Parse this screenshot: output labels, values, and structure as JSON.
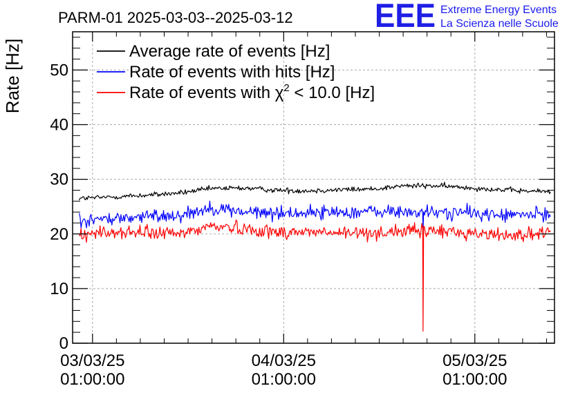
{
  "chart_data": {
    "type": "line",
    "title": "PARM-01 2025-03-03--2025-03-12",
    "ylabel": "Rate [Hz]",
    "xlabel": "",
    "ylim": [
      0,
      57
    ],
    "yticks": [
      0,
      10,
      20,
      30,
      40,
      50
    ],
    "xlim": [
      "2025-03-02 22:30",
      "2025-03-05 11:00"
    ],
    "xticks": [
      {
        "value": "2025-03-03 01:00",
        "date": "03/03/25",
        "time": "01:00:00"
      },
      {
        "value": "2025-03-04 01:00",
        "date": "04/03/25",
        "time": "01:00:00"
      },
      {
        "value": "2025-03-05 01:00",
        "date": "05/03/25",
        "time": "01:00:00"
      }
    ],
    "grid": true,
    "legend_position": "top-left",
    "legend_sup": "2",
    "series": [
      {
        "name": "Average rate of events [Hz]",
        "legend_prefix": "Average rate of events [Hz]",
        "legend_suffix": "",
        "color": "#000000",
        "noise": 0.35,
        "start": "2025-03-02 23:20",
        "end": "2025-03-05 10:30",
        "x": [
          "2025-03-02 23:20",
          "2025-03-03 04:00",
          "2025-03-03 08:00",
          "2025-03-03 12:00",
          "2025-03-03 16:00",
          "2025-03-03 20:00",
          "2025-03-04 00:00",
          "2025-03-04 04:00",
          "2025-03-04 08:00",
          "2025-03-04 12:00",
          "2025-03-04 16:00",
          "2025-03-04 20:00",
          "2025-03-05 00:00",
          "2025-03-05 04:00",
          "2025-03-05 08:00",
          "2025-03-05 10:30"
        ],
        "y": [
          26.5,
          26.8,
          27.1,
          27.5,
          28.3,
          28.4,
          28.0,
          27.9,
          28.1,
          28.2,
          28.8,
          28.8,
          28.5,
          28.1,
          27.8,
          27.8
        ]
      },
      {
        "name": "Rate of events with hits [Hz]",
        "legend_prefix": "Rate of events with hits [Hz]",
        "legend_suffix": "",
        "color": "#0000ff",
        "noise": 0.9,
        "start": "2025-03-02 23:20",
        "end": "2025-03-05 10:30",
        "x": [
          "2025-03-02 23:20",
          "2025-03-03 04:00",
          "2025-03-03 08:00",
          "2025-03-03 12:00",
          "2025-03-03 16:00",
          "2025-03-03 20:00",
          "2025-03-04 00:00",
          "2025-03-04 04:00",
          "2025-03-04 08:00",
          "2025-03-04 12:00",
          "2025-03-04 16:00",
          "2025-03-04 20:00",
          "2025-03-05 00:00",
          "2025-03-05 04:00",
          "2025-03-05 08:00",
          "2025-03-05 10:30"
        ],
        "y": [
          22.5,
          22.8,
          23.2,
          23.5,
          24.8,
          24.0,
          23.8,
          23.9,
          24.0,
          24.1,
          24.0,
          23.9,
          23.9,
          23.4,
          23.5,
          23.6
        ]
      },
      {
        "name": "Rate of events with χ2 < 10.0 [Hz]",
        "legend_prefix": "Rate of events with χ",
        "legend_suffix": " < 10.0 [Hz]",
        "color": "#ff0000",
        "noise": 0.9,
        "start": "2025-03-02 23:20",
        "end": "2025-03-05 10:30",
        "x": [
          "2025-03-02 23:20",
          "2025-03-03 04:00",
          "2025-03-03 08:00",
          "2025-03-03 12:00",
          "2025-03-03 16:00",
          "2025-03-03 20:00",
          "2025-03-04 00:00",
          "2025-03-04 04:00",
          "2025-03-04 08:00",
          "2025-03-04 12:00",
          "2025-03-04 16:00",
          "2025-03-04 20:00",
          "2025-03-05 00:00",
          "2025-03-05 04:00",
          "2025-03-05 08:00",
          "2025-03-05 10:30"
        ],
        "y": [
          20.0,
          20.3,
          20.2,
          20.0,
          21.5,
          21.0,
          20.3,
          20.4,
          20.1,
          20.2,
          20.5,
          20.6,
          20.2,
          19.8,
          19.9,
          20.0
        ]
      }
    ],
    "spike": {
      "x": "2025-03-04 18:30",
      "values": [
        {
          "series": 1,
          "y": 20.5
        },
        {
          "series": 2,
          "y": 2.2
        }
      ]
    }
  },
  "logo": {
    "text": "EEE",
    "line1": "Extreme Energy Events",
    "line2": "La Scienza nelle Scuole"
  }
}
